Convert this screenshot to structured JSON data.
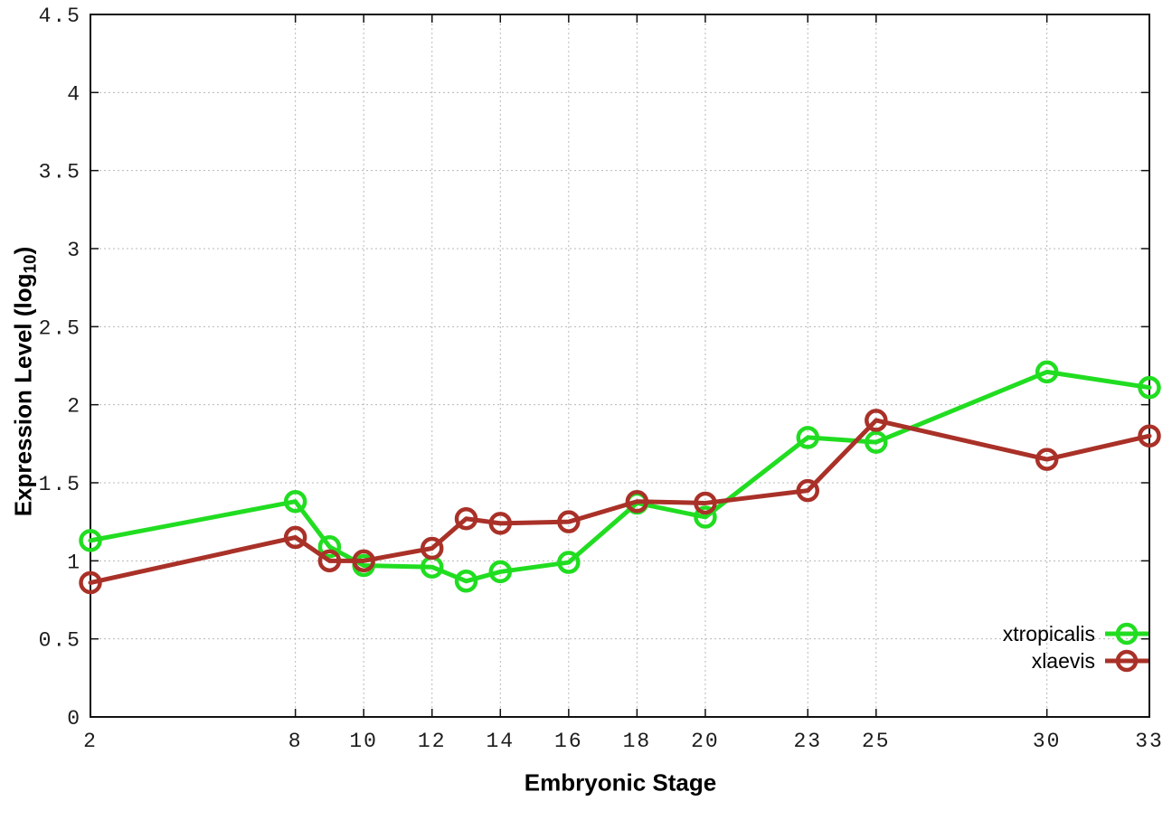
{
  "figure": {
    "xlabel": "Embryonic Stage",
    "ylabel": "Expression Level (log10)",
    "ylabel_prefix": "Expression Level (log",
    "ylabel_sub": "10",
    "ylabel_suffix": ")",
    "background_color": "#ffffff",
    "grid_color": "#b8b8b8",
    "border_color": "#111111"
  },
  "chart_data": {
    "type": "line",
    "title": "",
    "xlabel": "Embryonic Stage",
    "ylabel": "Expression Level (log10)",
    "x": [
      2,
      8,
      9,
      10,
      12,
      13,
      14,
      16,
      18,
      20,
      23,
      25,
      30,
      33
    ],
    "series": [
      {
        "name": "xtropicalis",
        "color": "#21dd21",
        "marker": "open-circle",
        "values": [
          1.13,
          1.38,
          1.09,
          0.97,
          0.96,
          0.87,
          0.93,
          0.99,
          1.37,
          1.28,
          1.79,
          1.76,
          2.21,
          2.11
        ]
      },
      {
        "name": "xlaevis",
        "color": "#a93128",
        "marker": "open-circle",
        "values": [
          0.86,
          1.15,
          1.0,
          1.0,
          1.08,
          1.27,
          1.24,
          1.25,
          1.38,
          1.37,
          1.45,
          1.9,
          1.65,
          1.8
        ]
      }
    ],
    "xlim": [
      2,
      33
    ],
    "ylim": [
      0,
      4.5
    ],
    "xticks": [
      2,
      8,
      10,
      12,
      14,
      16,
      18,
      20,
      23,
      25,
      30,
      33
    ],
    "xtick_labels": [
      "2",
      "8",
      "10",
      "12",
      "14",
      "16",
      "18",
      "20",
      "23",
      "25",
      "30",
      "33"
    ],
    "yticks": [
      0,
      0.5,
      1,
      1.5,
      2,
      2.5,
      3,
      3.5,
      4,
      4.5
    ],
    "ytick_labels": [
      "0",
      "0.5",
      "1",
      "1.5",
      "2",
      "2.5",
      "3",
      "3.5",
      "4",
      "4.5"
    ],
    "grid": true,
    "grid_style": "dotted",
    "legend_position": "bottom-right",
    "line_width": 5
  }
}
